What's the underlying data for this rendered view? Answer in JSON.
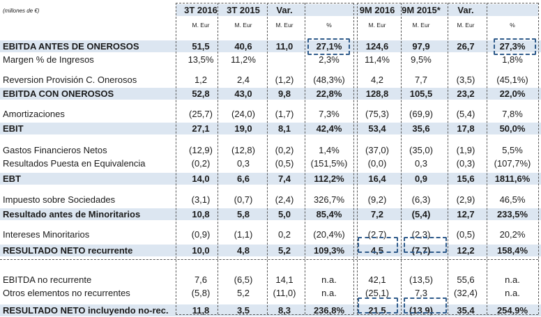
{
  "units_label": "(millones de €)",
  "columns": [
    {
      "header": "3T 2016",
      "sub": "M. Eur"
    },
    {
      "header": "3T 2015",
      "sub": "M. Eur"
    },
    {
      "header": "Var.",
      "sub": "M. Eur"
    },
    {
      "header": "",
      "sub": "%"
    },
    {
      "header": "9M 2016",
      "sub": "M. Eur"
    },
    {
      "header": "9M 2015*",
      "sub": "M. Eur"
    },
    {
      "header": "Var.",
      "sub": "M. Eur"
    },
    {
      "header": "",
      "sub": "%"
    }
  ],
  "rows": [
    {
      "label": "EBITDA ANTES DE ONEROSOS",
      "bold": true,
      "values": [
        "51,5",
        "40,6",
        "11,0",
        "27,1%",
        "124,6",
        "97,9",
        "26,7",
        "27,3%"
      ]
    },
    {
      "label": "Margen % de Ingresos",
      "bold": false,
      "values": [
        "13,5%",
        "11,2%",
        "",
        "2,3%",
        "11,4%",
        "9,5%",
        "",
        "1,8%"
      ]
    },
    {
      "label": "Reversion Provisión C. Onerosos",
      "bold": false,
      "values": [
        "1,2",
        "2,4",
        "(1,2)",
        "(48,3%)",
        "4,2",
        "7,7",
        "(3,5)",
        "(45,1%)"
      ]
    },
    {
      "label": "EBITDA CON ONEROSOS",
      "bold": true,
      "values": [
        "52,8",
        "43,0",
        "9,8",
        "22,8%",
        "128,8",
        "105,5",
        "23,2",
        "22,0%"
      ]
    },
    {
      "label": "Amortizaciones",
      "bold": false,
      "values": [
        "(25,7)",
        "(24,0)",
        "(1,7)",
        "7,3%",
        "(75,3)",
        "(69,9)",
        "(5,4)",
        "7,8%"
      ]
    },
    {
      "label": "EBIT",
      "bold": true,
      "values": [
        "27,1",
        "19,0",
        "8,1",
        "42,4%",
        "53,4",
        "35,6",
        "17,8",
        "50,0%"
      ]
    },
    {
      "label": "Gastos Financieros Netos",
      "bold": false,
      "values": [
        "(12,9)",
        "(12,8)",
        "(0,2)",
        "1,4%",
        "(37,0)",
        "(35,0)",
        "(1,9)",
        "5,5%"
      ]
    },
    {
      "label": "Resultados Puesta en Equivalencia",
      "bold": false,
      "values": [
        "(0,2)",
        "0,3",
        "(0,5)",
        "(151,5%)",
        "(0,0)",
        "0,3",
        "(0,3)",
        "(107,7%)"
      ]
    },
    {
      "label": "EBT",
      "bold": true,
      "values": [
        "14,0",
        "6,6",
        "7,4",
        "112,2%",
        "16,4",
        "0,9",
        "15,6",
        "1811,6%"
      ]
    },
    {
      "label": "Impuesto sobre Sociedades",
      "bold": false,
      "values": [
        "(3,1)",
        "(0,7)",
        "(2,4)",
        "326,7%",
        "(9,2)",
        "(6,3)",
        "(2,9)",
        "46,5%"
      ]
    },
    {
      "label": "Resultado antes de Minoritarios",
      "bold": true,
      "values": [
        "10,8",
        "5,8",
        "5,0",
        "85,4%",
        "7,2",
        "(5,4)",
        "12,7",
        "233,5%"
      ]
    },
    {
      "label": "Intereses Minoritarios",
      "bold": false,
      "values": [
        "(0,9)",
        "(1,1)",
        "0,2",
        "(20,4%)",
        "(2,7)",
        "(2,3)",
        "(0,5)",
        "20,2%"
      ]
    },
    {
      "label": "RESULTADO NETO  recurrente",
      "bold": true,
      "values": [
        "10,0",
        "4,8",
        "5,2",
        "109,3%",
        "4,5",
        "(7,7)",
        "12,2",
        "158,4%"
      ]
    },
    {
      "label": "EBITDA no recurrente",
      "bold": false,
      "values": [
        "7,6",
        "(6,5)",
        "14,1",
        "n.a.",
        "42,1",
        "(13,5)",
        "55,6",
        "n.a."
      ]
    },
    {
      "label": "Otros elementos no recurrentes",
      "bold": false,
      "values": [
        "(5,8)",
        "5,2",
        "(11,0)",
        "n.a.",
        "(25,1)",
        "7,3",
        "(32,4)",
        "n.a."
      ]
    },
    {
      "label": "RESULTADO NETO incluyendo no-rec.",
      "bold": true,
      "values": [
        "11,8",
        "3,5",
        "8,3",
        "236,8%",
        "21,5",
        "(13,9)",
        "35,4",
        "254,9%"
      ]
    }
  ]
}
